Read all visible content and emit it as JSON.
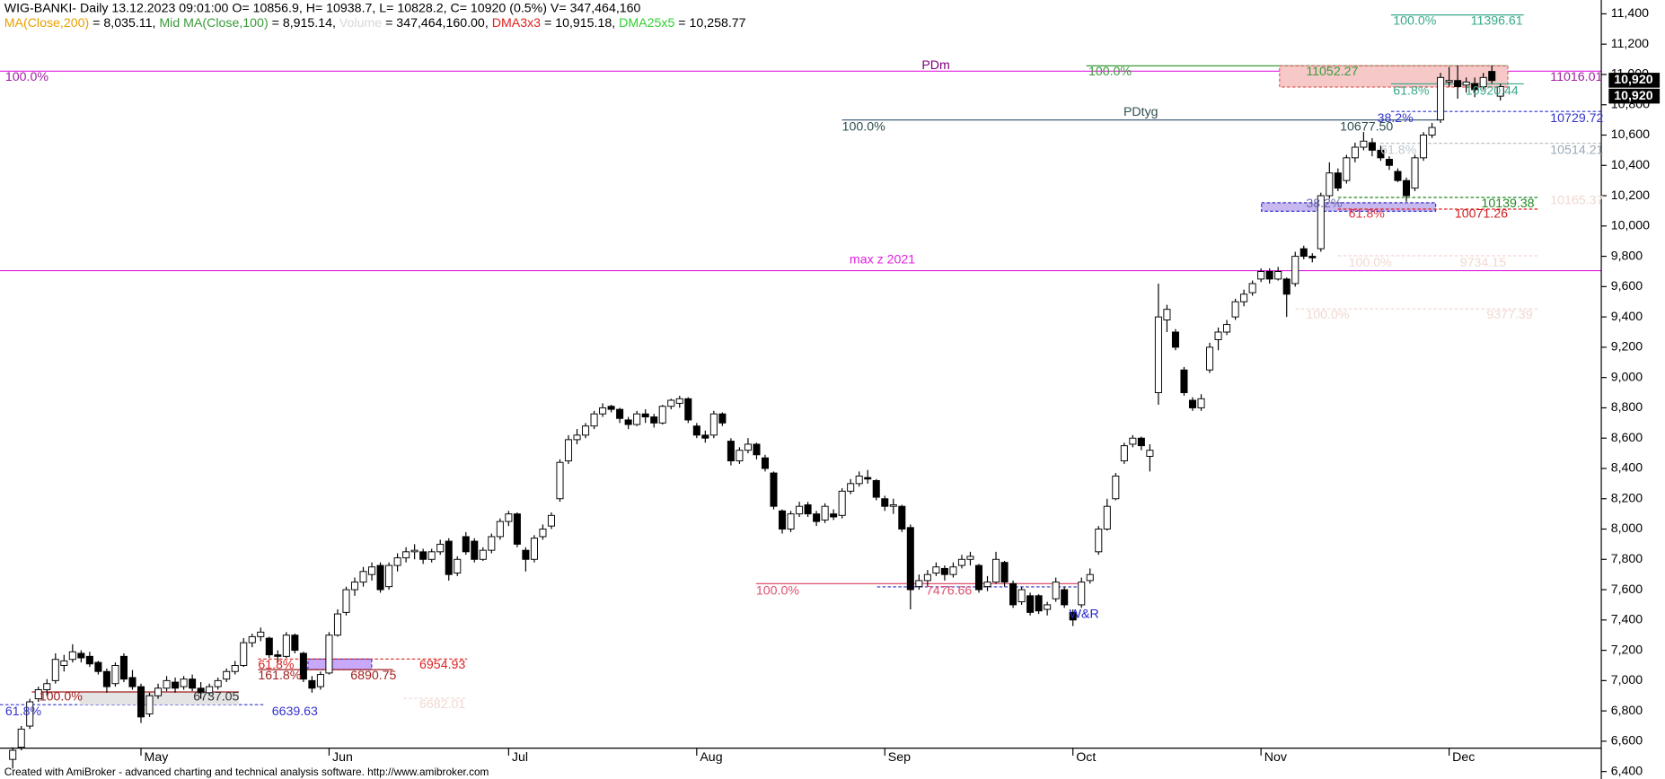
{
  "chart_data": {
    "type": "candlestick",
    "title": "WIG-BANKI- Daily 13.12.2023 09:01:00 O= 10856.9, H= 10938.7, L= 10828.2, C= 10920 (0.5%) V= 347,464,160",
    "indicators": [
      {
        "name": "MA(Close,200)",
        "color": "#e8a000",
        "text": " = 8,035.11, "
      },
      {
        "name": "Mid MA(Close,100)",
        "color": "#3a9a3a",
        "text": " = 8,915.14, "
      },
      {
        "name": "Volume",
        "color": "#d8d8d8",
        "text": " = 347,464,160.00, "
      },
      {
        "name": "DMA3x3",
        "color": "#e02020",
        "text": " = 10,915.18, "
      },
      {
        "name": "DMA25x5",
        "color": "#30d030",
        "text": " = 10,258.77"
      }
    ],
    "up_color": "#ffffff",
    "down_color": "#000000",
    "ylim": [
      6400,
      11400
    ],
    "yticks": [
      {
        "value": 6400,
        "label": "6,400"
      },
      {
        "value": 6600,
        "label": "6,600"
      },
      {
        "value": 6800,
        "label": "6,800"
      },
      {
        "value": 7000,
        "label": "7,000"
      },
      {
        "value": 7200,
        "label": "7,200"
      },
      {
        "value": 7400,
        "label": "7,400"
      },
      {
        "value": 7600,
        "label": "7,600"
      },
      {
        "value": 7800,
        "label": "7,800"
      },
      {
        "value": 8000,
        "label": "8,000"
      },
      {
        "value": 8200,
        "label": "8,200"
      },
      {
        "value": 8400,
        "label": "8,400"
      },
      {
        "value": 8600,
        "label": "8,600"
      },
      {
        "value": 8800,
        "label": "8,800"
      },
      {
        "value": 9000,
        "label": "9,000"
      },
      {
        "value": 9200,
        "label": "9,200"
      },
      {
        "value": 9400,
        "label": "9,400"
      },
      {
        "value": 9600,
        "label": "9,600"
      },
      {
        "value": 9800,
        "label": "9,800"
      },
      {
        "value": 10000,
        "label": "10,000"
      },
      {
        "value": 10200,
        "label": "10,200"
      },
      {
        "value": 10400,
        "label": "10,400"
      },
      {
        "value": 10600,
        "label": "10,600"
      },
      {
        "value": 10800,
        "label": "10,800"
      },
      {
        "value": 11000,
        "label": "11,000"
      },
      {
        "value": 11200,
        "label": "11,200"
      },
      {
        "value": 11400,
        "label": "11,400"
      }
    ],
    "price_tags": [
      {
        "value": 10920,
        "label": "10,920"
      },
      {
        "value": 10920,
        "label": "10,920"
      }
    ],
    "categories": [
      null,
      null,
      null,
      null,
      null,
      null,
      null,
      null,
      null,
      null,
      null,
      null,
      null,
      null,
      null,
      "May",
      null,
      null,
      null,
      null,
      null,
      null,
      null,
      null,
      null,
      null,
      null,
      null,
      null,
      null,
      null,
      null,
      null,
      null,
      null,
      null,
      null,
      "Jun",
      null,
      null,
      null,
      null,
      null,
      null,
      null,
      null,
      null,
      null,
      null,
      null,
      null,
      null,
      null,
      null,
      null,
      null,
      null,
      null,
      "Jul",
      null,
      null,
      null,
      null,
      null,
      null,
      null,
      null,
      null,
      null,
      null,
      null,
      null,
      null,
      null,
      null,
      null,
      null,
      null,
      null,
      null,
      "Aug",
      null,
      null,
      null,
      null,
      null,
      null,
      null,
      null,
      null,
      null,
      null,
      null,
      null,
      null,
      null,
      null,
      null,
      null,
      null,
      null,
      null,
      "Sep",
      null,
      null,
      null,
      null,
      null,
      null,
      null,
      null,
      null,
      null,
      null,
      null,
      null,
      null,
      null,
      null,
      null,
      null,
      null,
      null,
      null,
      "Oct",
      null,
      null,
      null,
      null,
      null,
      null,
      null,
      null,
      null,
      null,
      null,
      null,
      null,
      null,
      null,
      null,
      null,
      null,
      null,
      null,
      null,
      "Nov",
      null,
      null,
      null,
      null,
      null,
      null,
      null,
      null,
      null,
      null,
      null,
      null,
      null,
      null,
      null,
      null,
      null,
      null,
      null,
      null,
      null,
      "Dec",
      null,
      null,
      null,
      null,
      null,
      null
    ],
    "candles": [
      [
        6480,
        6560,
        6420,
        6540
      ],
      [
        6560,
        6700,
        6540,
        6680
      ],
      [
        6700,
        6880,
        6680,
        6860
      ],
      [
        6880,
        6960,
        6860,
        6940
      ],
      [
        6940,
        7010,
        6900,
        6980
      ],
      [
        7000,
        7180,
        6980,
        7140
      ],
      [
        7100,
        7170,
        7060,
        7130
      ],
      [
        7140,
        7240,
        7120,
        7190
      ],
      [
        7180,
        7200,
        7120,
        7150
      ],
      [
        7160,
        7190,
        7090,
        7110
      ],
      [
        7120,
        7130,
        7040,
        7060
      ],
      [
        7060,
        7080,
        6920,
        6960
      ],
      [
        6980,
        7120,
        6960,
        7100
      ],
      [
        7160,
        7180,
        6990,
        7010
      ],
      [
        7020,
        7070,
        6940,
        6960
      ],
      [
        6960,
        6980,
        6720,
        6760
      ],
      [
        6780,
        6920,
        6760,
        6900
      ],
      [
        6900,
        6980,
        6880,
        6950
      ],
      [
        6950,
        7030,
        6930,
        7000
      ],
      [
        6990,
        7020,
        6920,
        6950
      ],
      [
        6960,
        7030,
        6940,
        7010
      ],
      [
        7010,
        7040,
        6930,
        6950
      ],
      [
        6950,
        6990,
        6880,
        6920
      ],
      [
        6920,
        6980,
        6900,
        6960
      ],
      [
        6960,
        7020,
        6940,
        7000
      ],
      [
        7010,
        7080,
        6990,
        7060
      ],
      [
        7060,
        7130,
        7040,
        7100
      ],
      [
        7100,
        7280,
        7090,
        7250
      ],
      [
        7250,
        7310,
        7220,
        7290
      ],
      [
        7290,
        7350,
        7260,
        7320
      ],
      [
        7280,
        7290,
        7150,
        7170
      ],
      [
        7170,
        7200,
        7120,
        7160
      ],
      [
        7160,
        7320,
        7150,
        7300
      ],
      [
        7300,
        7310,
        7180,
        7200
      ],
      [
        7180,
        7190,
        6990,
        7010
      ],
      [
        7000,
        7030,
        6920,
        6950
      ],
      [
        6960,
        7060,
        6940,
        7040
      ],
      [
        7050,
        7320,
        7040,
        7300
      ],
      [
        7300,
        7470,
        7290,
        7440
      ],
      [
        7450,
        7620,
        7430,
        7600
      ],
      [
        7600,
        7680,
        7560,
        7650
      ],
      [
        7650,
        7750,
        7620,
        7720
      ],
      [
        7700,
        7780,
        7660,
        7750
      ],
      [
        7760,
        7780,
        7580,
        7600
      ],
      [
        7620,
        7780,
        7600,
        7760
      ],
      [
        7760,
        7840,
        7720,
        7810
      ],
      [
        7810,
        7880,
        7780,
        7850
      ],
      [
        7850,
        7900,
        7800,
        7860
      ],
      [
        7850,
        7870,
        7770,
        7800
      ],
      [
        7800,
        7870,
        7780,
        7850
      ],
      [
        7850,
        7930,
        7830,
        7900
      ],
      [
        7920,
        7940,
        7660,
        7700
      ],
      [
        7710,
        7820,
        7690,
        7800
      ],
      [
        7950,
        7980,
        7830,
        7850
      ],
      [
        7920,
        7940,
        7780,
        7800
      ],
      [
        7800,
        7880,
        7790,
        7860
      ],
      [
        7860,
        7970,
        7840,
        7950
      ],
      [
        7950,
        8070,
        7930,
        8050
      ],
      [
        8050,
        8120,
        8020,
        8100
      ],
      [
        8100,
        8110,
        7880,
        7900
      ],
      [
        7860,
        7880,
        7720,
        7800
      ],
      [
        7800,
        7960,
        7780,
        7940
      ],
      [
        7950,
        8030,
        7930,
        8000
      ],
      [
        8020,
        8110,
        8000,
        8090
      ],
      [
        8200,
        8460,
        8180,
        8440
      ],
      [
        8450,
        8620,
        8430,
        8590
      ],
      [
        8590,
        8660,
        8560,
        8620
      ],
      [
        8620,
        8700,
        8600,
        8680
      ],
      [
        8680,
        8780,
        8660,
        8760
      ],
      [
        8760,
        8830,
        8740,
        8800
      ],
      [
        8810,
        8820,
        8770,
        8790
      ],
      [
        8790,
        8800,
        8700,
        8730
      ],
      [
        8720,
        8740,
        8660,
        8690
      ],
      [
        8690,
        8780,
        8680,
        8760
      ],
      [
        8760,
        8790,
        8700,
        8740
      ],
      [
        8740,
        8760,
        8670,
        8700
      ],
      [
        8700,
        8820,
        8690,
        8810
      ],
      [
        8810,
        8860,
        8790,
        8850
      ],
      [
        8830,
        8880,
        8800,
        8860
      ],
      [
        8860,
        8870,
        8700,
        8720
      ],
      [
        8680,
        8700,
        8600,
        8620
      ],
      [
        8620,
        8650,
        8570,
        8600
      ],
      [
        8620,
        8780,
        8600,
        8760
      ],
      [
        8760,
        8770,
        8680,
        8700
      ],
      [
        8580,
        8600,
        8420,
        8450
      ],
      [
        8450,
        8540,
        8430,
        8520
      ],
      [
        8520,
        8600,
        8500,
        8560
      ],
      [
        8560,
        8570,
        8460,
        8490
      ],
      [
        8470,
        8490,
        8380,
        8400
      ],
      [
        8370,
        8380,
        8130,
        8150
      ],
      [
        8120,
        8130,
        7970,
        8000
      ],
      [
        8000,
        8120,
        7980,
        8100
      ],
      [
        8100,
        8180,
        8080,
        8150
      ],
      [
        8160,
        8180,
        8080,
        8100
      ],
      [
        8100,
        8120,
        8020,
        8050
      ],
      [
        8060,
        8170,
        8040,
        8150
      ],
      [
        8100,
        8130,
        8060,
        8080
      ],
      [
        8090,
        8270,
        8070,
        8250
      ],
      [
        8250,
        8330,
        8230,
        8300
      ],
      [
        8300,
        8380,
        8280,
        8350
      ],
      [
        8340,
        8390,
        8300,
        8330
      ],
      [
        8320,
        8330,
        8190,
        8210
      ],
      [
        8200,
        8220,
        8120,
        8150
      ],
      [
        8150,
        8200,
        8100,
        8160
      ],
      [
        8150,
        8160,
        7980,
        8000
      ],
      [
        8010,
        8030,
        7470,
        7600
      ],
      [
        7620,
        7700,
        7600,
        7660
      ],
      [
        7660,
        7730,
        7620,
        7700
      ],
      [
        7710,
        7780,
        7690,
        7750
      ],
      [
        7740,
        7760,
        7660,
        7700
      ],
      [
        7700,
        7780,
        7680,
        7750
      ],
      [
        7760,
        7830,
        7740,
        7800
      ],
      [
        7800,
        7850,
        7760,
        7820
      ],
      [
        7760,
        7770,
        7580,
        7600
      ],
      [
        7620,
        7690,
        7590,
        7650
      ],
      [
        7650,
        7850,
        7640,
        7800
      ],
      [
        7780,
        7790,
        7620,
        7650
      ],
      [
        7640,
        7660,
        7480,
        7500
      ],
      [
        7520,
        7620,
        7500,
        7600
      ],
      [
        7560,
        7580,
        7430,
        7450
      ],
      [
        7560,
        7570,
        7440,
        7460
      ],
      [
        7470,
        7520,
        7430,
        7500
      ],
      [
        7540,
        7680,
        7520,
        7650
      ],
      [
        7600,
        7620,
        7480,
        7500
      ],
      [
        7450,
        7470,
        7360,
        7400
      ],
      [
        7500,
        7680,
        7480,
        7650
      ],
      [
        7660,
        7740,
        7640,
        7700
      ],
      [
        7850,
        8020,
        7830,
        8000
      ],
      [
        8000,
        8200,
        7990,
        8150
      ],
      [
        8200,
        8370,
        8190,
        8350
      ],
      [
        8450,
        8570,
        8430,
        8550
      ],
      [
        8560,
        8620,
        8540,
        8600
      ],
      [
        8600,
        8610,
        8520,
        8550
      ],
      [
        8480,
        8560,
        8380,
        8520
      ],
      [
        8900,
        9620,
        8820,
        9400
      ],
      [
        9380,
        9480,
        9300,
        9450
      ],
      [
        9300,
        9320,
        9180,
        9200
      ],
      [
        9050,
        9070,
        8880,
        8900
      ],
      [
        8850,
        8870,
        8780,
        8800
      ],
      [
        8800,
        8890,
        8780,
        8860
      ],
      [
        9050,
        9230,
        9030,
        9200
      ],
      [
        9250,
        9330,
        9180,
        9300
      ],
      [
        9300,
        9380,
        9280,
        9350
      ],
      [
        9400,
        9520,
        9380,
        9500
      ],
      [
        9500,
        9580,
        9470,
        9550
      ],
      [
        9560,
        9640,
        9540,
        9620
      ],
      [
        9650,
        9720,
        9630,
        9700
      ],
      [
        9700,
        9720,
        9620,
        9650
      ],
      [
        9650,
        9730,
        9640,
        9700
      ],
      [
        9650,
        9660,
        9400,
        9550
      ],
      [
        9620,
        9830,
        9600,
        9800
      ],
      [
        9850,
        9870,
        9780,
        9800
      ],
      [
        9800,
        9820,
        9760,
        9790
      ],
      [
        9850,
        10220,
        9830,
        10200
      ],
      [
        10200,
        10420,
        10180,
        10350
      ],
      [
        10350,
        10380,
        10230,
        10250
      ],
      [
        10300,
        10470,
        10280,
        10450
      ],
      [
        10450,
        10550,
        10420,
        10520
      ],
      [
        10520,
        10620,
        10500,
        10560
      ],
      [
        10550,
        10580,
        10460,
        10500
      ],
      [
        10500,
        10530,
        10430,
        10450
      ],
      [
        10440,
        10460,
        10370,
        10400
      ],
      [
        10360,
        10380,
        10290,
        10300
      ],
      [
        10300,
        10320,
        10160,
        10200
      ],
      [
        10250,
        10470,
        10230,
        10450
      ],
      [
        10450,
        10620,
        10430,
        10600
      ],
      [
        10600,
        10680,
        10580,
        10650
      ],
      [
        10700,
        11010,
        10680,
        10980
      ],
      [
        10950,
        11050,
        10920,
        10960
      ],
      [
        10960,
        11060,
        10840,
        10920
      ],
      [
        10930,
        10980,
        10880,
        10950
      ],
      [
        10940,
        10980,
        10850,
        10900
      ],
      [
        10920,
        11010,
        10900,
        10980
      ],
      [
        11020,
        11060,
        10940,
        10960
      ],
      [
        10856.9,
        10938.7,
        10828.2,
        10920
      ]
    ],
    "annotations": [
      "100.0%",
      "PDm",
      11016.01,
      "100.0%",
      11052.27,
      "100.0%",
      11396.61,
      "61.8%",
      10920.44,
      "100.0%",
      "PDtyg",
      "10677.50",
      "38.2%",
      10729.72,
      "61.8%",
      10514.21,
      "38.2%",
      "61.8%",
      10071.26,
      10139.38,
      10165.37,
      "100.0%",
      9734.15,
      "100.0%",
      9377.39,
      "max z 2021",
      "100.0%",
      7476.66,
      "W&R",
      "61.8%",
      6639.63,
      "100.0%",
      6737.05,
      "61.8%",
      "161.8%",
      6890.75,
      6954.93,
      6682.01
    ],
    "footer": "Created with AmiBroker - advanced charting and technical analysis software. http://www.amibroker.com"
  }
}
